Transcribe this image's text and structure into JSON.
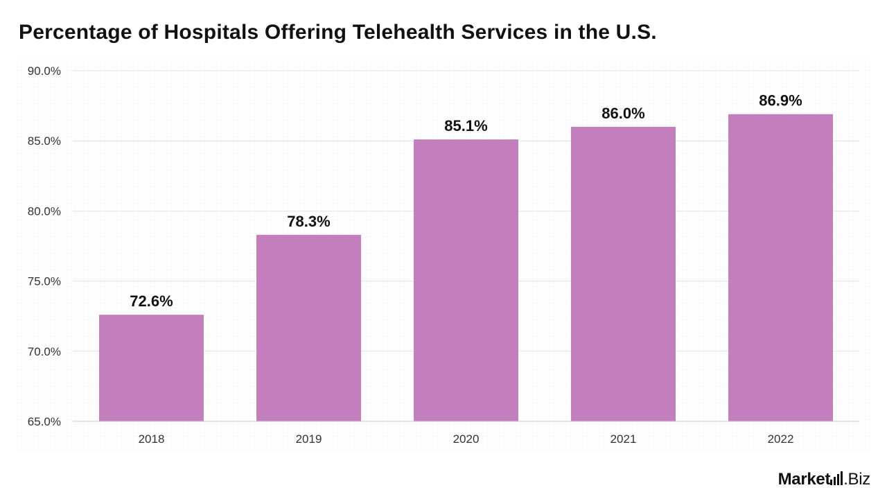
{
  "chart_data": {
    "type": "bar",
    "title": "Percentage of Hospitals Offering Telehealth Services in the U.S.",
    "categories": [
      "2018",
      "2019",
      "2020",
      "2021",
      "2022"
    ],
    "values": [
      72.6,
      78.3,
      85.1,
      86.0,
      86.9
    ],
    "data_labels": [
      "72.6%",
      "78.3%",
      "85.1%",
      "86.0%",
      "86.9%"
    ],
    "ylim": [
      65,
      90
    ],
    "y_ticks": [
      65,
      70,
      75,
      80,
      85,
      90
    ],
    "y_tick_labels": [
      "65.0%",
      "70.0%",
      "75.0%",
      "80.0%",
      "85.0%",
      "90.0%"
    ],
    "xlabel": "",
    "ylabel": "",
    "grid": true,
    "legend": "none",
    "bar_color": "#c37fbd"
  },
  "brand": {
    "main": "Market",
    "sub": ".Biz"
  }
}
